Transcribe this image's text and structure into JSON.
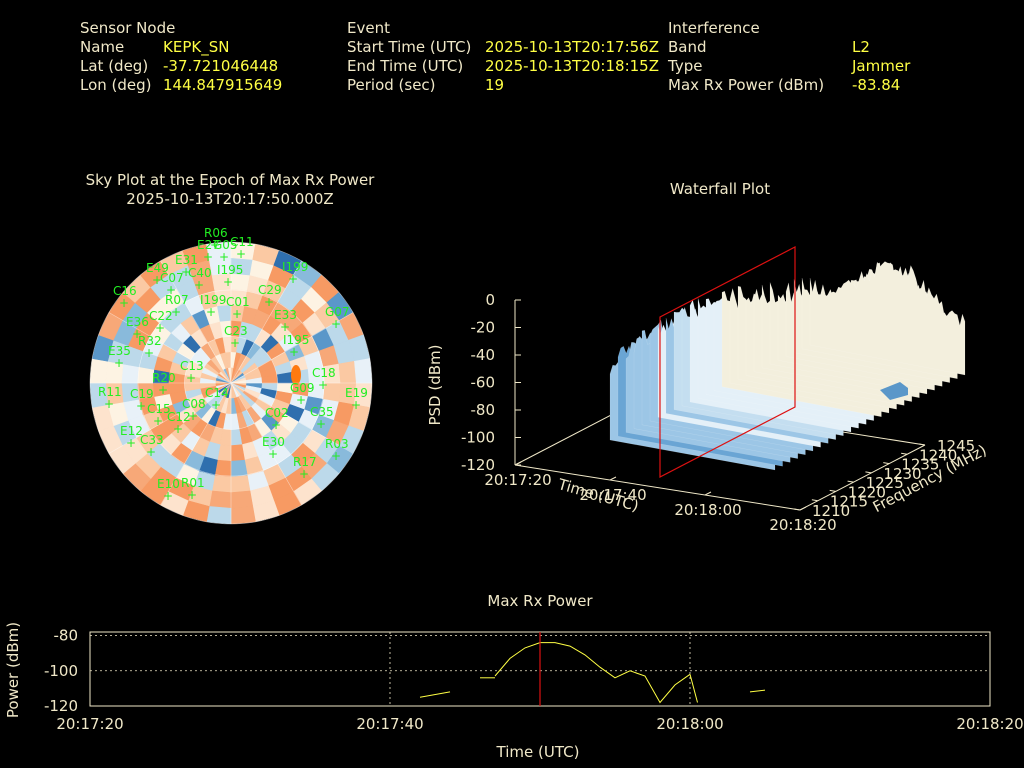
{
  "info": {
    "sensor": {
      "heading": "Sensor Node",
      "rows": [
        {
          "label": "Name",
          "value": "KEPK_SN"
        },
        {
          "label": "Lat (deg)",
          "value": "-37.721046448"
        },
        {
          "label": "Lon (deg)",
          "value": "144.847915649"
        }
      ]
    },
    "event": {
      "heading": "Event",
      "rows": [
        {
          "label": "Start Time (UTC)",
          "value": "2025-10-13T20:17:56Z"
        },
        {
          "label": "End Time (UTC)",
          "value": "2025-10-13T20:18:15Z"
        },
        {
          "label": "Period (sec)",
          "value": "19"
        }
      ]
    },
    "interference": {
      "heading": "Interference",
      "rows": [
        {
          "label": "Band",
          "value": "L2"
        },
        {
          "label": "Type",
          "value": "Jammer"
        },
        {
          "label": "Max Rx Power (dBm)",
          "value": "-83.84"
        }
      ]
    }
  },
  "colors": {
    "header_text": "#f0e8c8",
    "value_text": "#ffff44",
    "satellite": "#22ee22",
    "marker": "#dd1111",
    "power_line": "#ffff44",
    "sky_hot": "#f79a63",
    "sky_cold": "#2f6fae",
    "surface": "#bcd9ea"
  },
  "chart_data": [
    {
      "type": "scatter",
      "name": "sky",
      "title": "Sky Plot at the Epoch of Max Rx Power",
      "subtitle": "2025-10-13T20:17:50.000Z",
      "projection": "polar",
      "satellites": [
        "R06",
        "E27",
        "G05",
        "C11",
        "E31",
        "E49",
        "C07",
        "C40",
        "I195",
        "I199",
        "C16",
        "R07",
        "I199",
        "C22",
        "C29",
        "C01",
        "C23",
        "G07",
        "E36",
        "R32",
        "E33",
        "E35",
        "I195",
        "R20",
        "C13",
        "G09",
        "R11",
        "E12",
        "C08",
        "C19",
        "C14",
        "E30",
        "R17",
        "C33",
        "C35",
        "C15",
        "E10",
        "R01",
        "C12",
        "C02",
        "R03",
        "E19",
        "C18"
      ]
    },
    {
      "type": "area",
      "name": "waterfall",
      "title": "Waterfall Plot",
      "xlabel": "Time (UTC)",
      "ylabel": "Frequency (MHz)",
      "zlabel": "PSD (dBm)",
      "x_ticks": [
        "20:17:20",
        "20:17:40",
        "20:18:00",
        "20:18:20"
      ],
      "y_ticks": [
        "1210",
        "1215",
        "1220",
        "1225",
        "1230",
        "1235",
        "1240",
        "1245"
      ],
      "z_ticks": [
        "0",
        "-20",
        "-40",
        "-60",
        "-80",
        "-100",
        "-120"
      ],
      "zlim": [
        -120,
        0
      ]
    },
    {
      "type": "line",
      "name": "max_rx_power",
      "title": "Max Rx Power",
      "xlabel": "Time (UTC)",
      "ylabel": "Power (dBm)",
      "x_ticks": [
        "20:17:20",
        "20:17:40",
        "20:18:00",
        "20:18:20"
      ],
      "y_ticks": [
        "-80",
        "-100",
        "-120"
      ],
      "xlim": [
        0,
        60
      ],
      "ylim": [
        -120,
        -78
      ],
      "grid": true,
      "marker_at": 30,
      "segments": [
        {
          "x": [
            22,
            24
          ],
          "y": [
            -115,
            -112
          ]
        },
        {
          "x": [
            26,
            27
          ],
          "y": [
            -104,
            -104
          ]
        },
        {
          "x": [
            27,
            28,
            29,
            30,
            31,
            32,
            33,
            34,
            35,
            36,
            37,
            38,
            39,
            40
          ],
          "y": [
            -103,
            -93,
            -87,
            -84,
            -84,
            -86,
            -91,
            -98,
            -104,
            -100,
            -103,
            -118,
            -108,
            -102
          ]
        },
        {
          "x": [
            40,
            40.5
          ],
          "y": [
            -102,
            -118
          ]
        },
        {
          "x": [
            44,
            45
          ],
          "y": [
            -112,
            -111
          ]
        }
      ]
    }
  ]
}
